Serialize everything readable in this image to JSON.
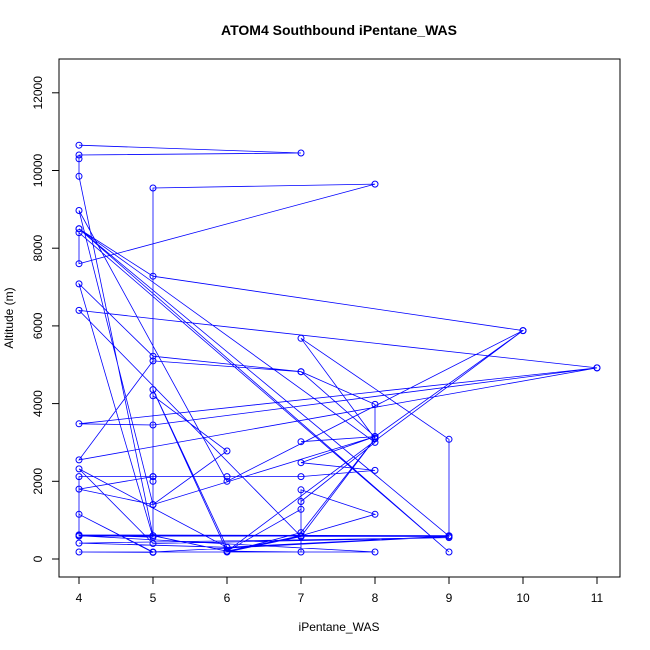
{
  "chart_data": {
    "type": "line",
    "title": "ATOM4 Southbound iPentane_WAS",
    "xlabel": "iPentane_WAS",
    "ylabel": "Altitude (m)",
    "xlim": [
      4,
      11
    ],
    "ylim": [
      0,
      12000
    ],
    "xticks": [
      4,
      5,
      6,
      7,
      8,
      9,
      10,
      11
    ],
    "yticks": [
      0,
      2000,
      4000,
      6000,
      8000,
      10000,
      12000
    ],
    "grid": false,
    "legend": "none",
    "series": [
      {
        "color": "#0000ff",
        "marker": "open-circle",
        "points": [
          [
            4,
            10650
          ],
          [
            7,
            10450
          ],
          [
            4,
            10400
          ],
          [
            4,
            10300
          ],
          [
            4,
            9850
          ],
          [
            5,
            600
          ],
          [
            5,
            9550
          ],
          [
            8,
            9650
          ],
          [
            4,
            7600
          ],
          [
            4,
            8400
          ],
          [
            9,
            180
          ],
          [
            4,
            8500
          ],
          [
            5,
            7280
          ],
          [
            10,
            5880
          ],
          [
            6,
            2000
          ],
          [
            4,
            8970
          ],
          [
            5,
            1400
          ],
          [
            6,
            2780
          ],
          [
            5,
            4200
          ],
          [
            5,
            2000
          ],
          [
            5,
            2120
          ],
          [
            6,
            2120
          ],
          [
            7,
            2120
          ],
          [
            8,
            2280
          ],
          [
            7,
            2480
          ],
          [
            8,
            3150
          ],
          [
            8,
            3100
          ],
          [
            7,
            5680
          ],
          [
            9,
            3080
          ],
          [
            9,
            600
          ],
          [
            4,
            620
          ],
          [
            5,
            560
          ],
          [
            4,
            7080
          ],
          [
            5,
            5220
          ],
          [
            7,
            4820
          ],
          [
            8,
            3980
          ],
          [
            8,
            3150
          ],
          [
            7,
            3020
          ],
          [
            8,
            3150
          ],
          [
            10,
            5880
          ],
          [
            6,
            200
          ],
          [
            5,
            4360
          ],
          [
            6,
            300
          ],
          [
            4,
            2320
          ],
          [
            5,
            400
          ],
          [
            9,
            550
          ],
          [
            4,
            410
          ],
          [
            6,
            300
          ],
          [
            9,
            590
          ],
          [
            4,
            600
          ],
          [
            8,
            180
          ],
          [
            4,
            180
          ],
          [
            5,
            170
          ],
          [
            4,
            1150
          ],
          [
            5,
            180
          ],
          [
            9,
            580
          ],
          [
            5,
            600
          ],
          [
            6,
            200
          ],
          [
            7,
            180
          ],
          [
            7,
            1280
          ],
          [
            6,
            200
          ],
          [
            7,
            600
          ],
          [
            8,
            1150
          ],
          [
            7,
            1780
          ],
          [
            7,
            580
          ],
          [
            6,
            180
          ],
          [
            7,
            680
          ],
          [
            8,
            3100
          ],
          [
            7,
            580
          ],
          [
            4,
            6400
          ],
          [
            11,
            4920
          ],
          [
            5,
            3450
          ],
          [
            4,
            3480
          ],
          [
            11,
            4920
          ],
          [
            4,
            2550
          ],
          [
            5,
            5100
          ],
          [
            7,
            4820
          ],
          [
            8,
            3150
          ],
          [
            5,
            1400
          ],
          [
            4,
            1800
          ],
          [
            5,
            2120
          ],
          [
            4,
            2120
          ],
          [
            4,
            590
          ],
          [
            9,
            590
          ],
          [
            4,
            8500
          ],
          [
            8,
            3000
          ],
          [
            7,
            1480
          ]
        ]
      }
    ]
  }
}
